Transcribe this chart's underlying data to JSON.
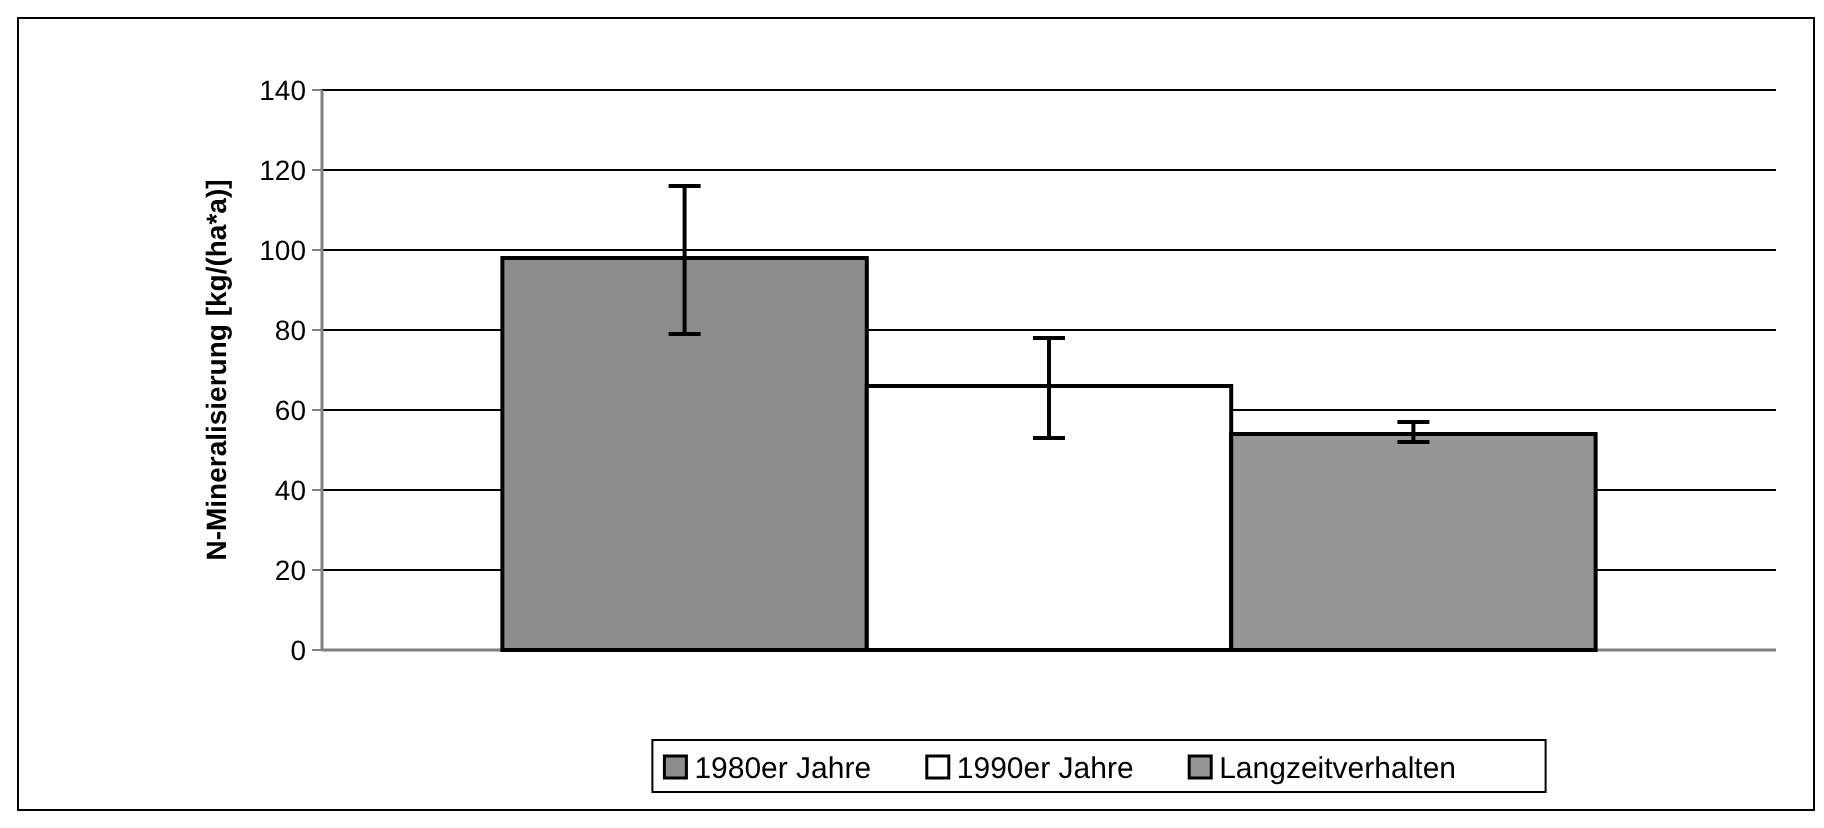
{
  "chart_data": {
    "type": "bar",
    "ylabel": "N-Mineralisierung [kg/(ha*a)]",
    "categories": [
      null
    ],
    "series": [
      {
        "name": "1980er Jahre",
        "color": "#8c8c8c",
        "values": [
          98
        ],
        "errors": [
          [
            79,
            116
          ]
        ]
      },
      {
        "name": "1990er Jahre",
        "color": "#ffffff",
        "values": [
          66
        ],
        "errors": [
          [
            53,
            78
          ]
        ]
      },
      {
        "name": "Langzeitverhalten",
        "color": "#969696",
        "values": [
          54
        ],
        "errors": [
          [
            52,
            57
          ]
        ]
      }
    ],
    "ylim": [
      0,
      140
    ],
    "yticks": [
      0,
      20,
      40,
      60,
      80,
      100,
      120,
      140
    ],
    "grid": "y",
    "legend": "bottom"
  }
}
